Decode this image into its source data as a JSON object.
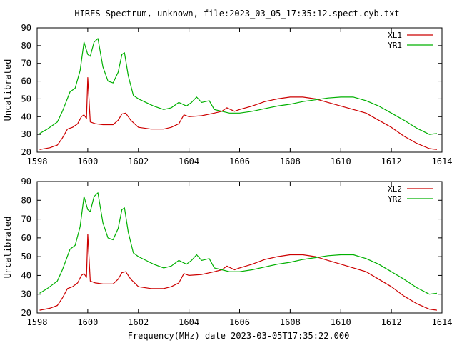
{
  "title": "HIRES Spectrum, unknown, file:2023_03_05_17:35:12.spect.cyb.txt",
  "xlabel": "Frequency(MHz) date 2023-03-05T17:35:22.000",
  "chart_data": [
    {
      "type": "line",
      "title": "HIRES Spectrum, unknown, file:2023_03_05_17:35:12.spect.cyb.txt",
      "xlabel": "",
      "ylabel": "Uncalibrated",
      "xlim": [
        1598,
        1614
      ],
      "ylim": [
        20,
        90
      ],
      "xticks": [
        1598,
        1600,
        1602,
        1604,
        1606,
        1608,
        1610,
        1612,
        1614
      ],
      "yticks": [
        20,
        30,
        40,
        50,
        60,
        70,
        80,
        90
      ],
      "grid": false,
      "legend": "top-right",
      "colors": {
        "XL1": "#cc0000",
        "YR1": "#00b000"
      },
      "series": [
        {
          "name": "XL1",
          "x": [
            1598.1,
            1598.5,
            1598.8,
            1599.0,
            1599.2,
            1599.4,
            1599.6,
            1599.75,
            1599.85,
            1599.95,
            1600.0,
            1600.1,
            1600.3,
            1600.6,
            1601.0,
            1601.2,
            1601.35,
            1601.5,
            1601.7,
            1602.0,
            1602.5,
            1603.0,
            1603.3,
            1603.6,
            1603.8,
            1604.0,
            1604.5,
            1605.0,
            1605.3,
            1605.5,
            1605.8,
            1606.0,
            1606.5,
            1607.0,
            1607.5,
            1608.0,
            1608.5,
            1609.0,
            1609.5,
            1610.0,
            1610.5,
            1611.0,
            1611.5,
            1612.0,
            1612.5,
            1613.0,
            1613.5,
            1613.8
          ],
          "values": [
            21.5,
            22.5,
            24,
            28,
            33,
            34,
            36,
            40,
            41,
            39,
            62,
            37,
            36,
            35.5,
            35.5,
            38,
            41.5,
            42,
            38,
            34,
            33,
            33,
            34,
            36,
            41,
            40,
            40.5,
            42,
            43,
            45,
            43,
            44,
            46,
            48.5,
            50,
            51,
            51,
            50,
            48,
            46,
            44,
            42,
            38,
            34,
            29,
            25,
            22,
            21.5
          ]
        },
        {
          "name": "YR1",
          "x": [
            1598.1,
            1598.4,
            1598.8,
            1599.0,
            1599.3,
            1599.5,
            1599.7,
            1599.85,
            1600.0,
            1600.1,
            1600.25,
            1600.4,
            1600.6,
            1600.8,
            1601.0,
            1601.2,
            1601.35,
            1601.45,
            1601.6,
            1601.8,
            1602.0,
            1602.3,
            1602.6,
            1603.0,
            1603.3,
            1603.6,
            1603.9,
            1604.1,
            1604.3,
            1604.5,
            1604.8,
            1605.0,
            1605.3,
            1605.6,
            1606.0,
            1606.5,
            1607.0,
            1607.5,
            1608.0,
            1608.5,
            1609.0,
            1609.5,
            1610.0,
            1610.5,
            1611.0,
            1611.5,
            1612.0,
            1612.5,
            1613.0,
            1613.5,
            1613.8
          ],
          "values": [
            30.5,
            33,
            37,
            43,
            54,
            56,
            66,
            82,
            75,
            74,
            82,
            84,
            68,
            60,
            59,
            65,
            75,
            76,
            63,
            52,
            50,
            48,
            46,
            44,
            45,
            48,
            46,
            48,
            51,
            48,
            49,
            44,
            43,
            42,
            42,
            43,
            44.5,
            46,
            47,
            48.5,
            49.5,
            50.5,
            51,
            51,
            49,
            46,
            42,
            38,
            33.5,
            30,
            30.5
          ]
        }
      ]
    },
    {
      "type": "line",
      "xlabel": "Frequency(MHz) date 2023-03-05T17:35:22.000",
      "ylabel": "Uncalibrated",
      "xlim": [
        1598,
        1614
      ],
      "ylim": [
        20,
        90
      ],
      "xticks": [
        1598,
        1600,
        1602,
        1604,
        1606,
        1608,
        1610,
        1612,
        1614
      ],
      "yticks": [
        20,
        30,
        40,
        50,
        60,
        70,
        80,
        90
      ],
      "grid": false,
      "legend": "top-right",
      "colors": {
        "XL2": "#cc0000",
        "YR2": "#00b000"
      },
      "series": [
        {
          "name": "XL2",
          "x": [
            1598.1,
            1598.5,
            1598.8,
            1599.0,
            1599.2,
            1599.4,
            1599.6,
            1599.75,
            1599.85,
            1599.95,
            1600.0,
            1600.1,
            1600.3,
            1600.6,
            1601.0,
            1601.2,
            1601.35,
            1601.5,
            1601.7,
            1602.0,
            1602.5,
            1603.0,
            1603.3,
            1603.6,
            1603.8,
            1604.0,
            1604.5,
            1605.0,
            1605.3,
            1605.5,
            1605.8,
            1606.0,
            1606.5,
            1607.0,
            1607.5,
            1608.0,
            1608.5,
            1609.0,
            1609.5,
            1610.0,
            1610.5,
            1611.0,
            1611.5,
            1612.0,
            1612.5,
            1613.0,
            1613.5,
            1613.8
          ],
          "values": [
            21.5,
            22.5,
            24,
            28,
            33,
            34,
            36,
            40,
            41,
            39,
            62,
            37,
            36,
            35.5,
            35.5,
            38,
            41.5,
            42,
            38,
            34,
            33,
            33,
            34,
            36,
            41,
            40,
            40.5,
            42,
            43,
            45,
            43,
            44,
            46,
            48.5,
            50,
            51,
            51,
            50,
            48,
            46,
            44,
            42,
            38,
            34,
            29,
            25,
            22,
            21.5
          ]
        },
        {
          "name": "YR2",
          "x": [
            1598.1,
            1598.4,
            1598.8,
            1599.0,
            1599.3,
            1599.5,
            1599.7,
            1599.85,
            1600.0,
            1600.1,
            1600.25,
            1600.4,
            1600.6,
            1600.8,
            1601.0,
            1601.2,
            1601.35,
            1601.45,
            1601.6,
            1601.8,
            1602.0,
            1602.3,
            1602.6,
            1603.0,
            1603.3,
            1603.6,
            1603.9,
            1604.1,
            1604.3,
            1604.5,
            1604.8,
            1605.0,
            1605.3,
            1605.6,
            1606.0,
            1606.5,
            1607.0,
            1607.5,
            1608.0,
            1608.5,
            1609.0,
            1609.5,
            1610.0,
            1610.5,
            1611.0,
            1611.5,
            1612.0,
            1612.5,
            1613.0,
            1613.5,
            1613.8
          ],
          "values": [
            30.5,
            33,
            37,
            43,
            54,
            56,
            66,
            82,
            75,
            74,
            82,
            84,
            68,
            60,
            59,
            65,
            75,
            76,
            63,
            52,
            50,
            48,
            46,
            44,
            45,
            48,
            46,
            48,
            51,
            48,
            49,
            44,
            43,
            42,
            42,
            43,
            44.5,
            46,
            47,
            48.5,
            49.5,
            50.5,
            51,
            51,
            49,
            46,
            42,
            38,
            33.5,
            30,
            30.5
          ]
        }
      ]
    }
  ]
}
